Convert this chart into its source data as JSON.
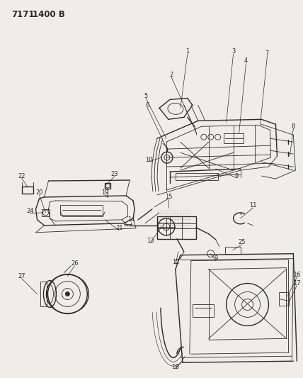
{
  "title1": "7171",
  "title2": "1400 B",
  "bg": "#f0ede8",
  "lc": "#2a2a2a",
  "figsize": [
    4.28,
    5.33
  ],
  "dpi": 100,
  "label_fs": 6.0,
  "title_fs": 8.5
}
